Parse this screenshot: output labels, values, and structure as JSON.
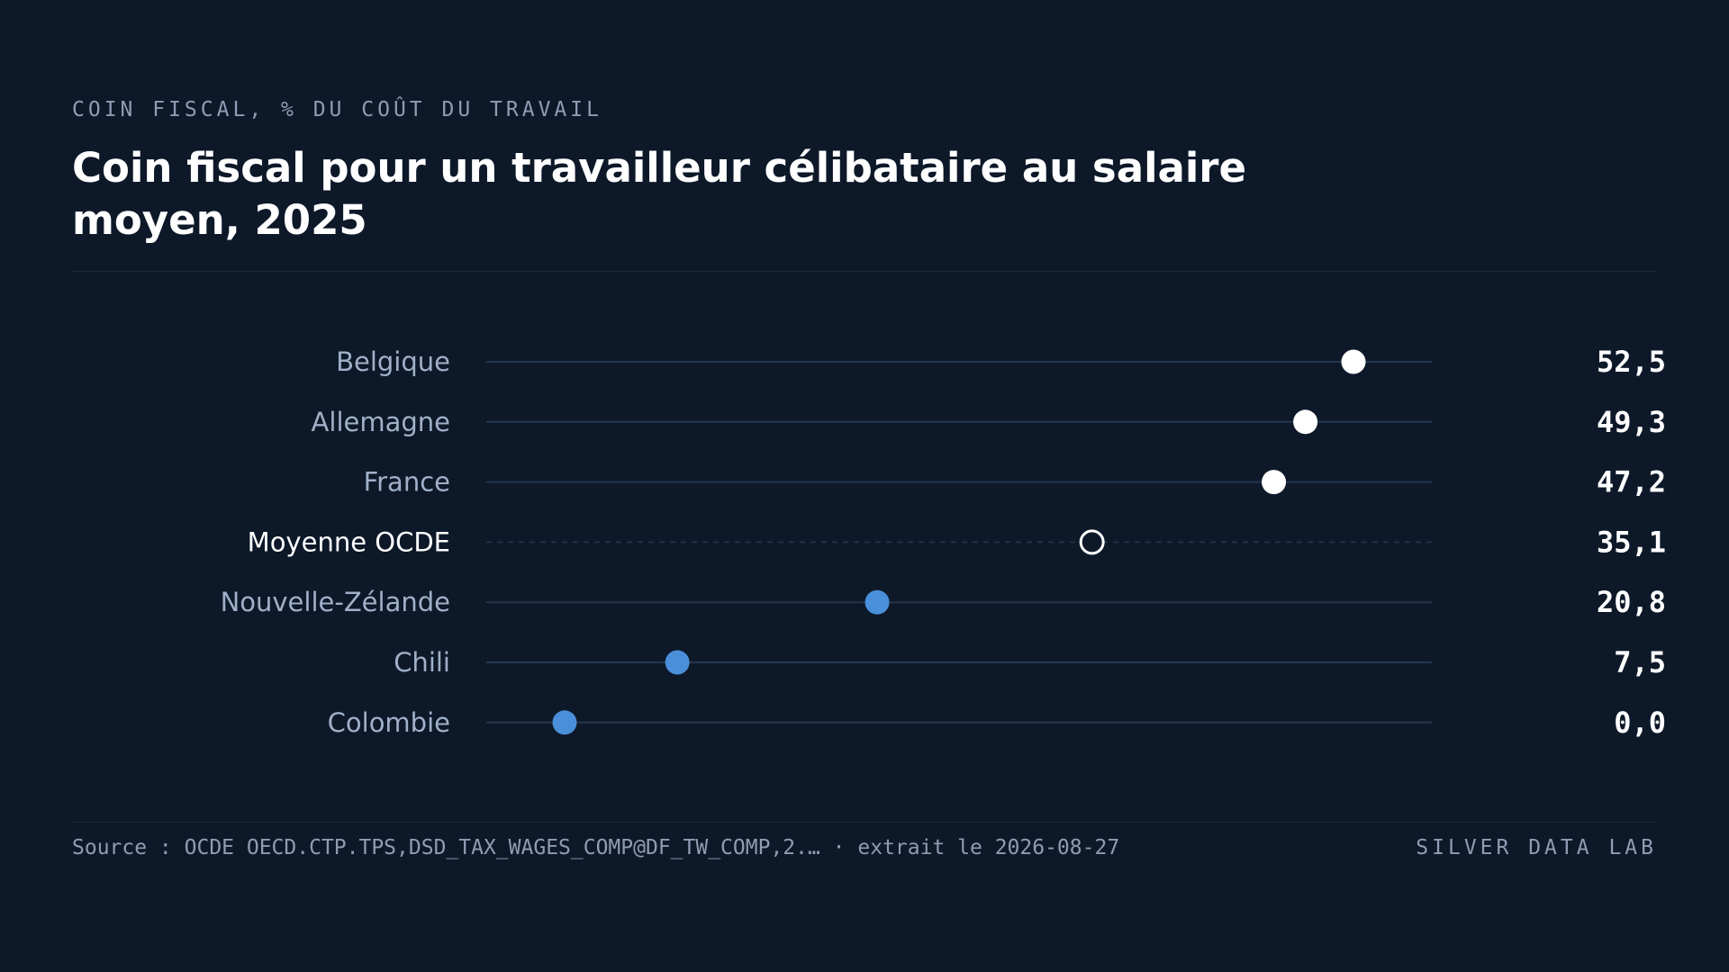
{
  "header": {
    "kicker": "COIN FISCAL, % DU COÛT DU TRAVAIL",
    "title": "Coin fiscal pour un travailleur célibataire au salaire moyen, 2025"
  },
  "footer": {
    "source": "Source : OCDE OECD.CTP.TPS,DSD_TAX_WAGES_COMP@DF_TW_COMP,2.… · extrait le 2026-08-27",
    "brand": "SILVER DATA LAB"
  },
  "colors": {
    "background": "#0d1929",
    "highlight": "#ffffff",
    "low": "#4a8fd9",
    "track": "#23374f",
    "label": "#9fb0c8"
  },
  "chart_data": {
    "type": "dot",
    "title": "Coin fiscal pour un travailleur célibataire au salaire moyen, 2025",
    "ylabel": "COIN FISCAL, % DU COÛT DU TRAVAIL",
    "xlim": [
      0,
      60
    ],
    "grid": false,
    "categories": [
      "Belgique",
      "Allemagne",
      "France",
      "Moyenne OCDE",
      "Nouvelle-Zélande",
      "Chili",
      "Colombie"
    ],
    "values": [
      52.5,
      49.3,
      47.2,
      35.1,
      20.8,
      7.5,
      0.0
    ],
    "value_labels": [
      "52,5",
      "49,3",
      "47,2",
      "35,1",
      "20,8",
      "7,5",
      "0,0"
    ],
    "groups": [
      "high",
      "high",
      "high",
      "average",
      "low",
      "low",
      "low"
    ]
  }
}
